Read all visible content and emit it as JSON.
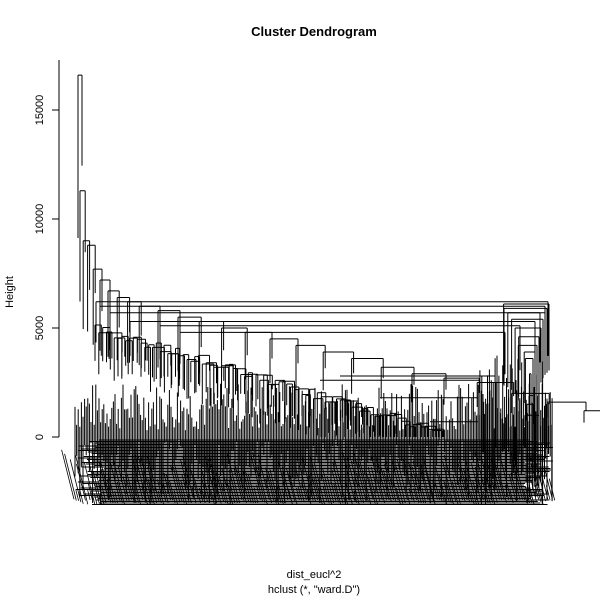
{
  "chart_data": {
    "type": "dendrogram",
    "title": "Cluster Dendrogram",
    "xlabel": "dist_eucl^2",
    "sublabel": "hclust (*, \"ward.D\")",
    "ylabel": "Height",
    "ylim": [
      0,
      16500
    ],
    "yticks": [
      0,
      5000,
      10000,
      15000
    ],
    "y_tick_labels": [
      "0",
      "5000",
      "10000",
      "15000"
    ],
    "merge_heights_top": [
      16600,
      11300,
      9000,
      8800,
      7700,
      7200,
      6700,
      6400,
      6200,
      6000,
      5800,
      5500,
      5300,
      5000,
      4800,
      4500,
      4200,
      3900,
      3600,
      3200,
      2900,
      2700,
      2500,
      2000,
      1600,
      1200
    ],
    "right_cluster_heights": [
      6100,
      5900,
      5700,
      5400,
      5000,
      4600,
      4200,
      3900,
      3600,
      2900,
      1900,
      1500,
      1000
    ],
    "leaf_labels_legible": false,
    "colors": {
      "line": "#000000",
      "background": "#ffffff"
    }
  }
}
